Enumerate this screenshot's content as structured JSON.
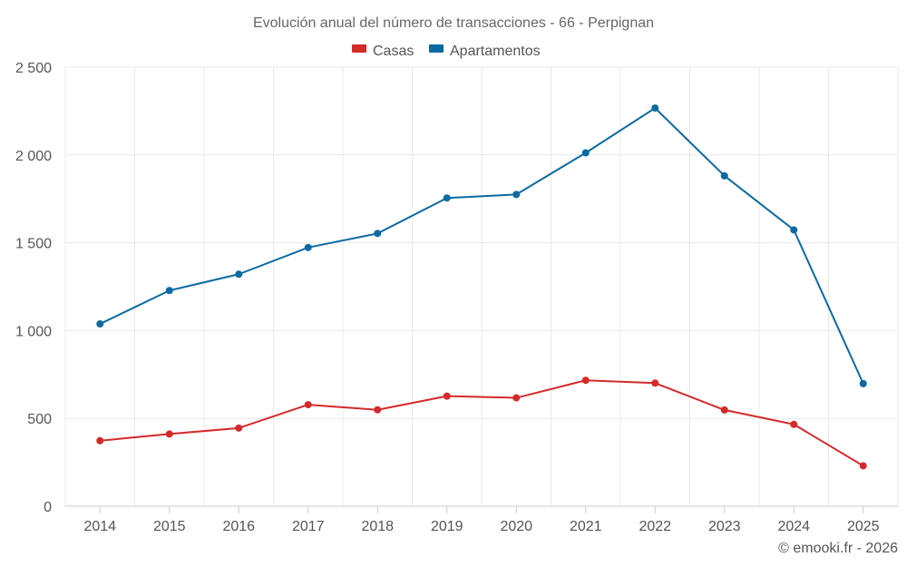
{
  "chart_data": {
    "type": "line",
    "title": "Evolución anual del número de transacciones - 66 - Perpignan",
    "categories": [
      "2014",
      "2015",
      "2016",
      "2017",
      "2018",
      "2019",
      "2020",
      "2021",
      "2022",
      "2023",
      "2024",
      "2025"
    ],
    "series": [
      {
        "name": "Casas",
        "color": "#d42a2a",
        "values": [
          373,
          411,
          445,
          578,
          549,
          627,
          617,
          717,
          701,
          548,
          466,
          230
        ]
      },
      {
        "name": "Apartamentos",
        "color": "#0b6aa2",
        "values": [
          1038,
          1228,
          1321,
          1473,
          1553,
          1755,
          1775,
          2012,
          2267,
          1881,
          1573,
          698
        ]
      }
    ],
    "ylim": [
      0,
      2500
    ],
    "yticks": [
      0,
      500,
      1000,
      1500,
      2000,
      2500
    ],
    "ytick_labels": [
      "0",
      "500",
      "1 000",
      "1 500",
      "2 000",
      "2 500"
    ],
    "xlabel": "",
    "ylabel": "",
    "legend_position": "top-center",
    "grid": true
  },
  "credit": "© emooki.fr - 2026"
}
